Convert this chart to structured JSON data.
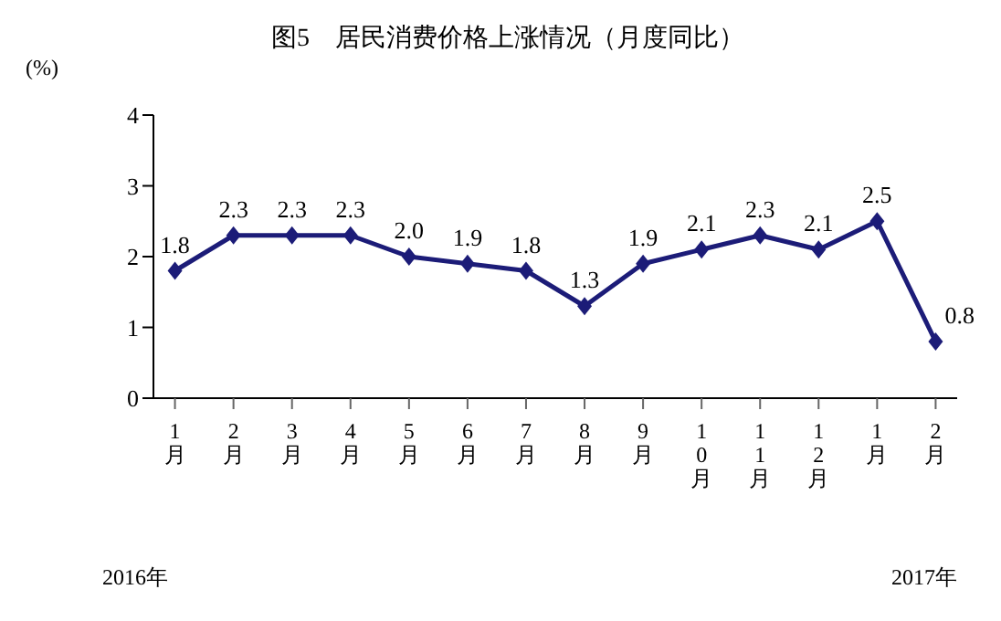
{
  "chart_data": {
    "type": "line",
    "title": "图5　居民消费价格上涨情况（月度同比）",
    "ylabel": "(%)",
    "categories": [
      "1月",
      "2月",
      "3月",
      "4月",
      "5月",
      "6月",
      "7月",
      "8月",
      "9月",
      "10月",
      "11月",
      "12月",
      "1月",
      "2月"
    ],
    "series": [
      {
        "color": "#1c1c78",
        "values": [
          1.8,
          2.3,
          2.3,
          2.3,
          2.0,
          1.9,
          1.8,
          1.3,
          1.9,
          2.1,
          2.3,
          2.1,
          2.5,
          0.8
        ],
        "value_labels": [
          "1.8",
          "2.3",
          "2.3",
          "2.3",
          "2.0",
          "1.9",
          "1.8",
          "1.3",
          "1.9",
          "2.1",
          "2.3",
          "2.1",
          "2.5",
          "0.8"
        ]
      }
    ],
    "ylim": [
      0,
      4
    ],
    "yticks": [
      0,
      1,
      2,
      3,
      4
    ],
    "marker": "diamond",
    "line_style": "solid",
    "annotations": [
      "2016年",
      "2017年"
    ]
  }
}
